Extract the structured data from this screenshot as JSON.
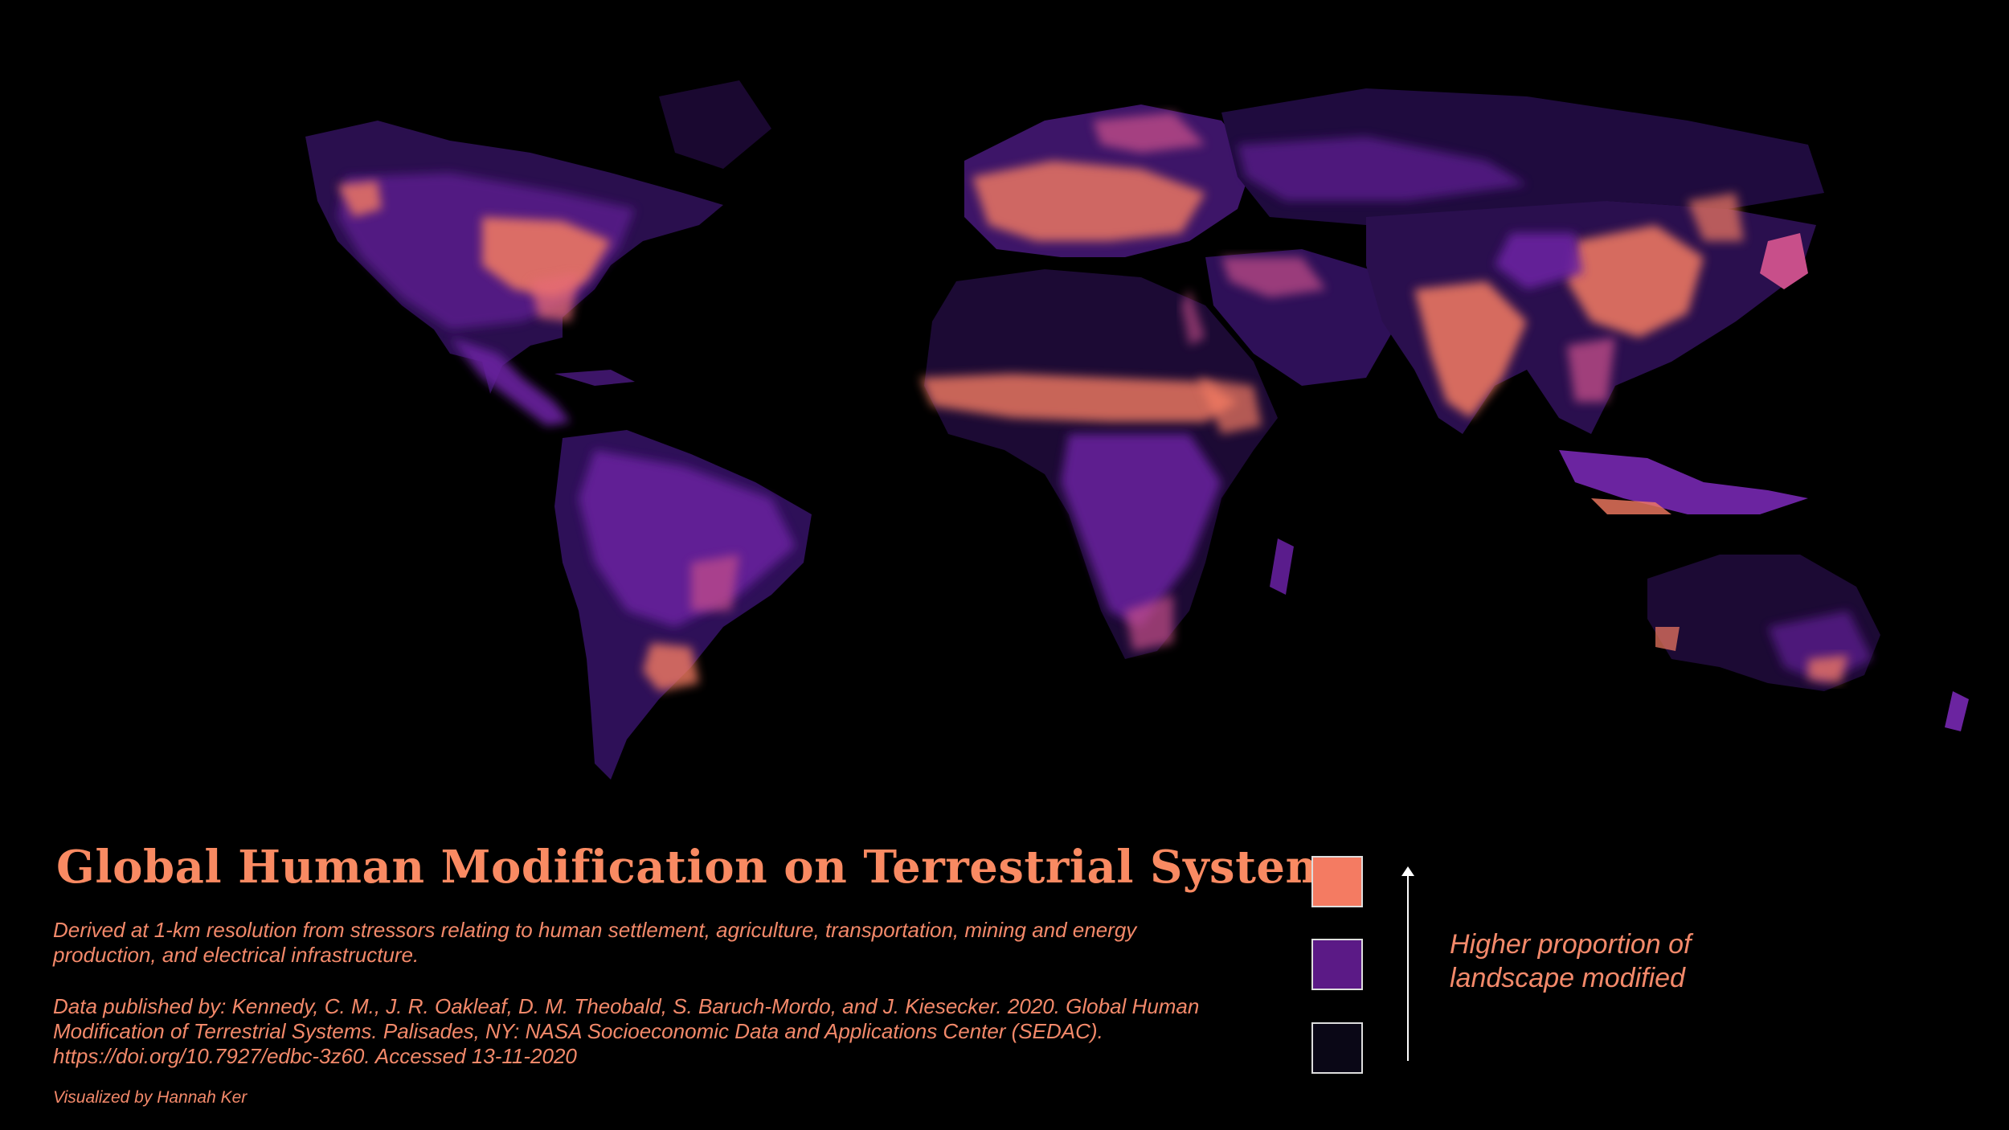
{
  "map": {
    "title": "Global Human Modification on Terrestrial Systems",
    "description": "Derived at 1-km resolution from stressors relating to human settlement, agriculture, transportation, mining and energy production, and electrical infrastructure.",
    "citation": "Data published by: Kennedy, C. M., J. R. Oakleaf, D. M. Theobald, S. Baruch-Mordo, and J. Kiesecker. 2020. Global Human Modification of Terrestrial Systems. Palisades, NY: NASA Socioeconomic Data and Applications Center (SEDAC). https://doi.org/10.7927/edbc-3z60. Accessed 13-11-2020",
    "credit": "Visualized by Hannah Ker",
    "background_color": "#000000"
  },
  "legend": {
    "label": "Higher proportion of landscape modified",
    "classes": [
      {
        "level": "high",
        "color": "#f47b62"
      },
      {
        "level": "medium",
        "color": "#5b1a86"
      },
      {
        "level": "low",
        "color": "#0a0716"
      }
    ],
    "arrow_direction": "up"
  },
  "palette": {
    "high": "#f98a62",
    "medium_high": "#c84f8a",
    "medium": "#6b24a0",
    "low": "#2a1050"
  }
}
